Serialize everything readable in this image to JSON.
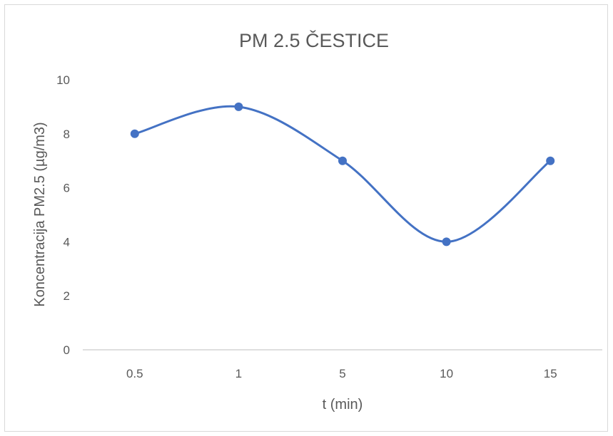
{
  "chart_data": {
    "type": "line",
    "title": "PM 2.5 ČESTICE",
    "xlabel": "t (min)",
    "ylabel": "Koncentracija PM2.5 (µg/m3)",
    "categories": [
      "0.5",
      "1",
      "5",
      "10",
      "15"
    ],
    "series": [
      {
        "values": [
          8,
          9,
          7,
          4,
          7
        ]
      }
    ],
    "ylim": [
      0,
      10
    ],
    "yticks": [
      "0",
      "2",
      "4",
      "6",
      "8",
      "10"
    ],
    "grid": false,
    "smooth": true,
    "colors": {
      "line": "#4472c4",
      "axis": "#bfbfbf"
    }
  }
}
